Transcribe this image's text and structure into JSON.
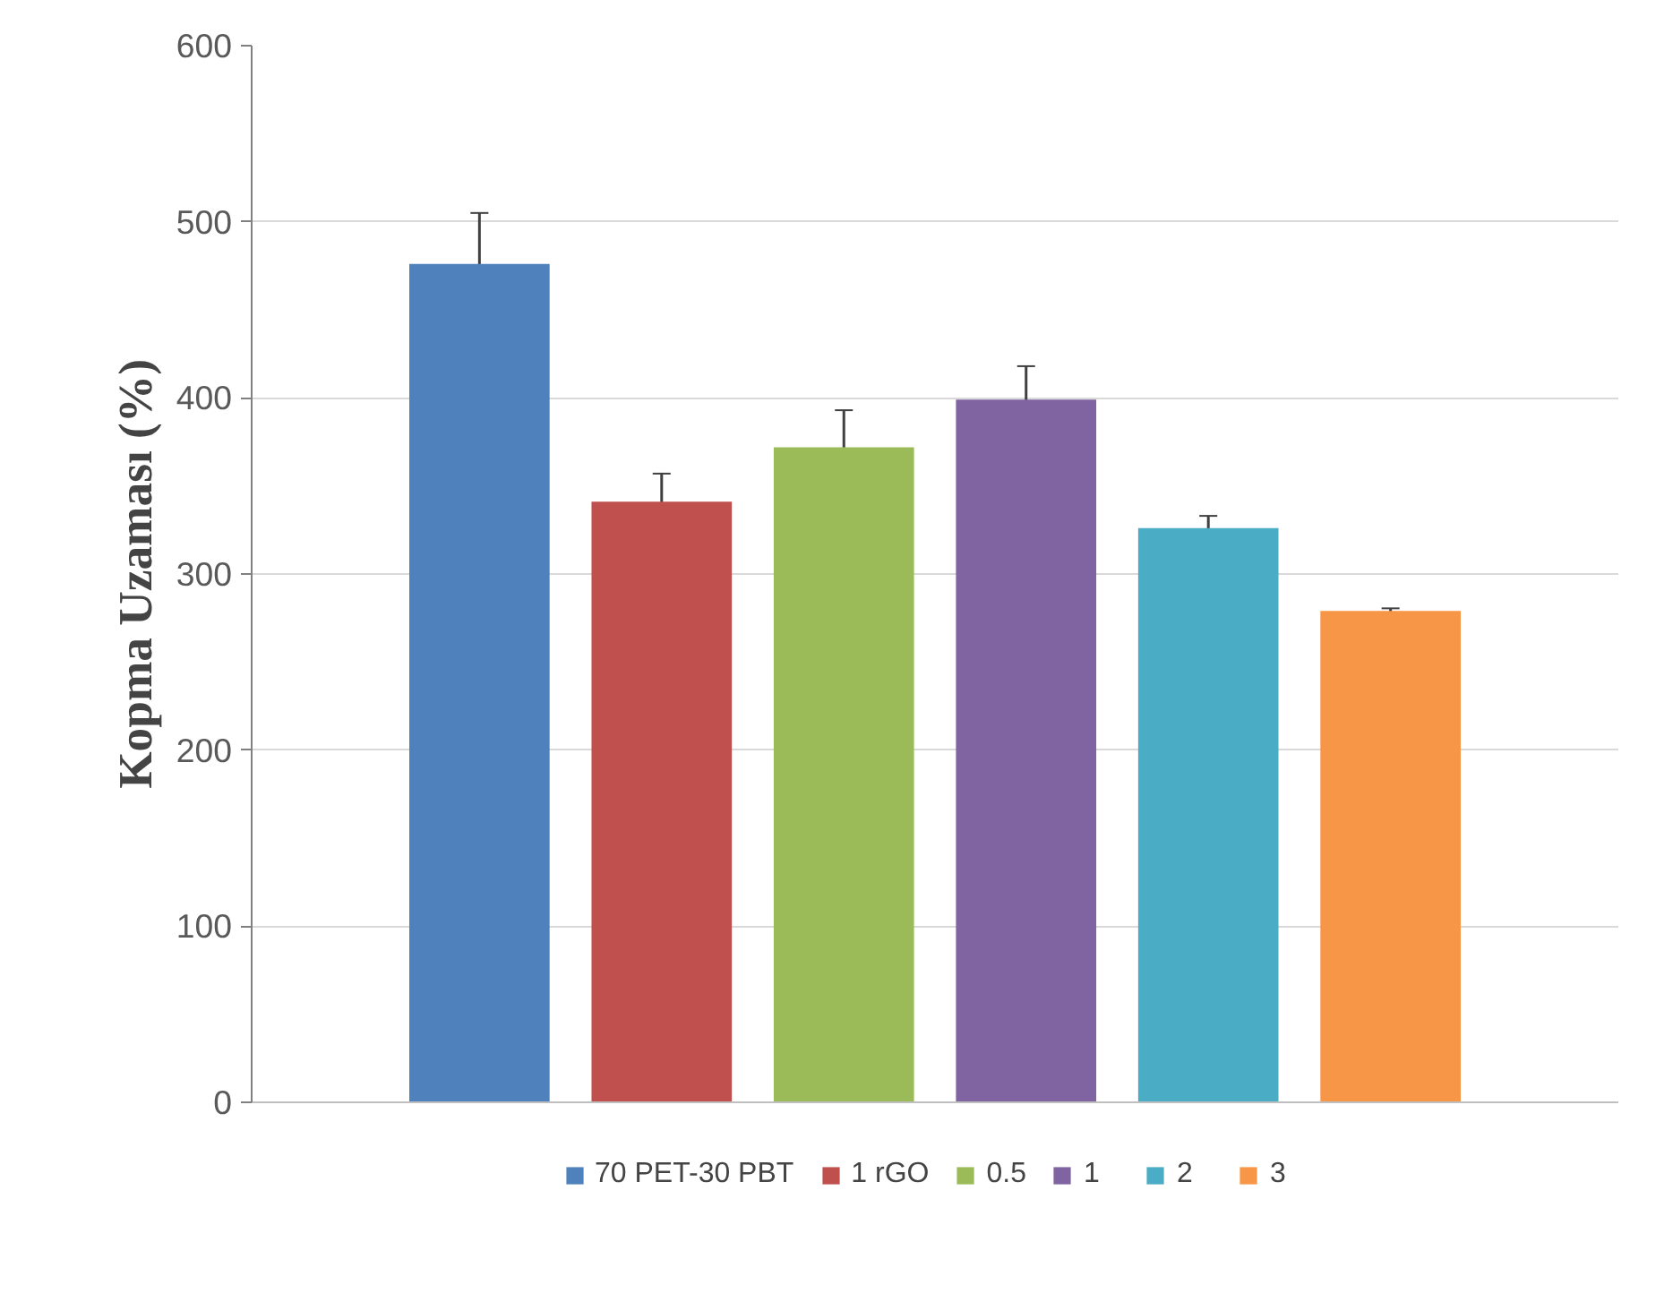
{
  "chart_data": {
    "type": "bar",
    "ylabel": "Kopma Uzaması (%)",
    "categories": [
      null
    ],
    "series": [
      {
        "name": "70 PET-30 PBT",
        "color": "#4f81bd",
        "values": [
          476
        ],
        "errors": [
          29
        ]
      },
      {
        "name": "1 rGO",
        "color": "#c0504d",
        "values": [
          341
        ],
        "errors": [
          16
        ]
      },
      {
        "name": "0.5",
        "color": "#9bbb59",
        "values": [
          372
        ],
        "errors": [
          21
        ]
      },
      {
        "name": "1",
        "color": "#8064a2",
        "values": [
          399
        ],
        "errors": [
          19
        ]
      },
      {
        "name": "2",
        "color": "#4bacc6",
        "values": [
          326
        ],
        "errors": [
          7
        ]
      },
      {
        "name": "3",
        "color": "#f79646",
        "values": [
          279
        ],
        "errors": [
          1.5
        ]
      }
    ],
    "ylim": [
      0,
      600
    ],
    "yticks": [
      0,
      100,
      200,
      300,
      400,
      500,
      600
    ],
    "grid": "y",
    "legend": "bottom"
  }
}
